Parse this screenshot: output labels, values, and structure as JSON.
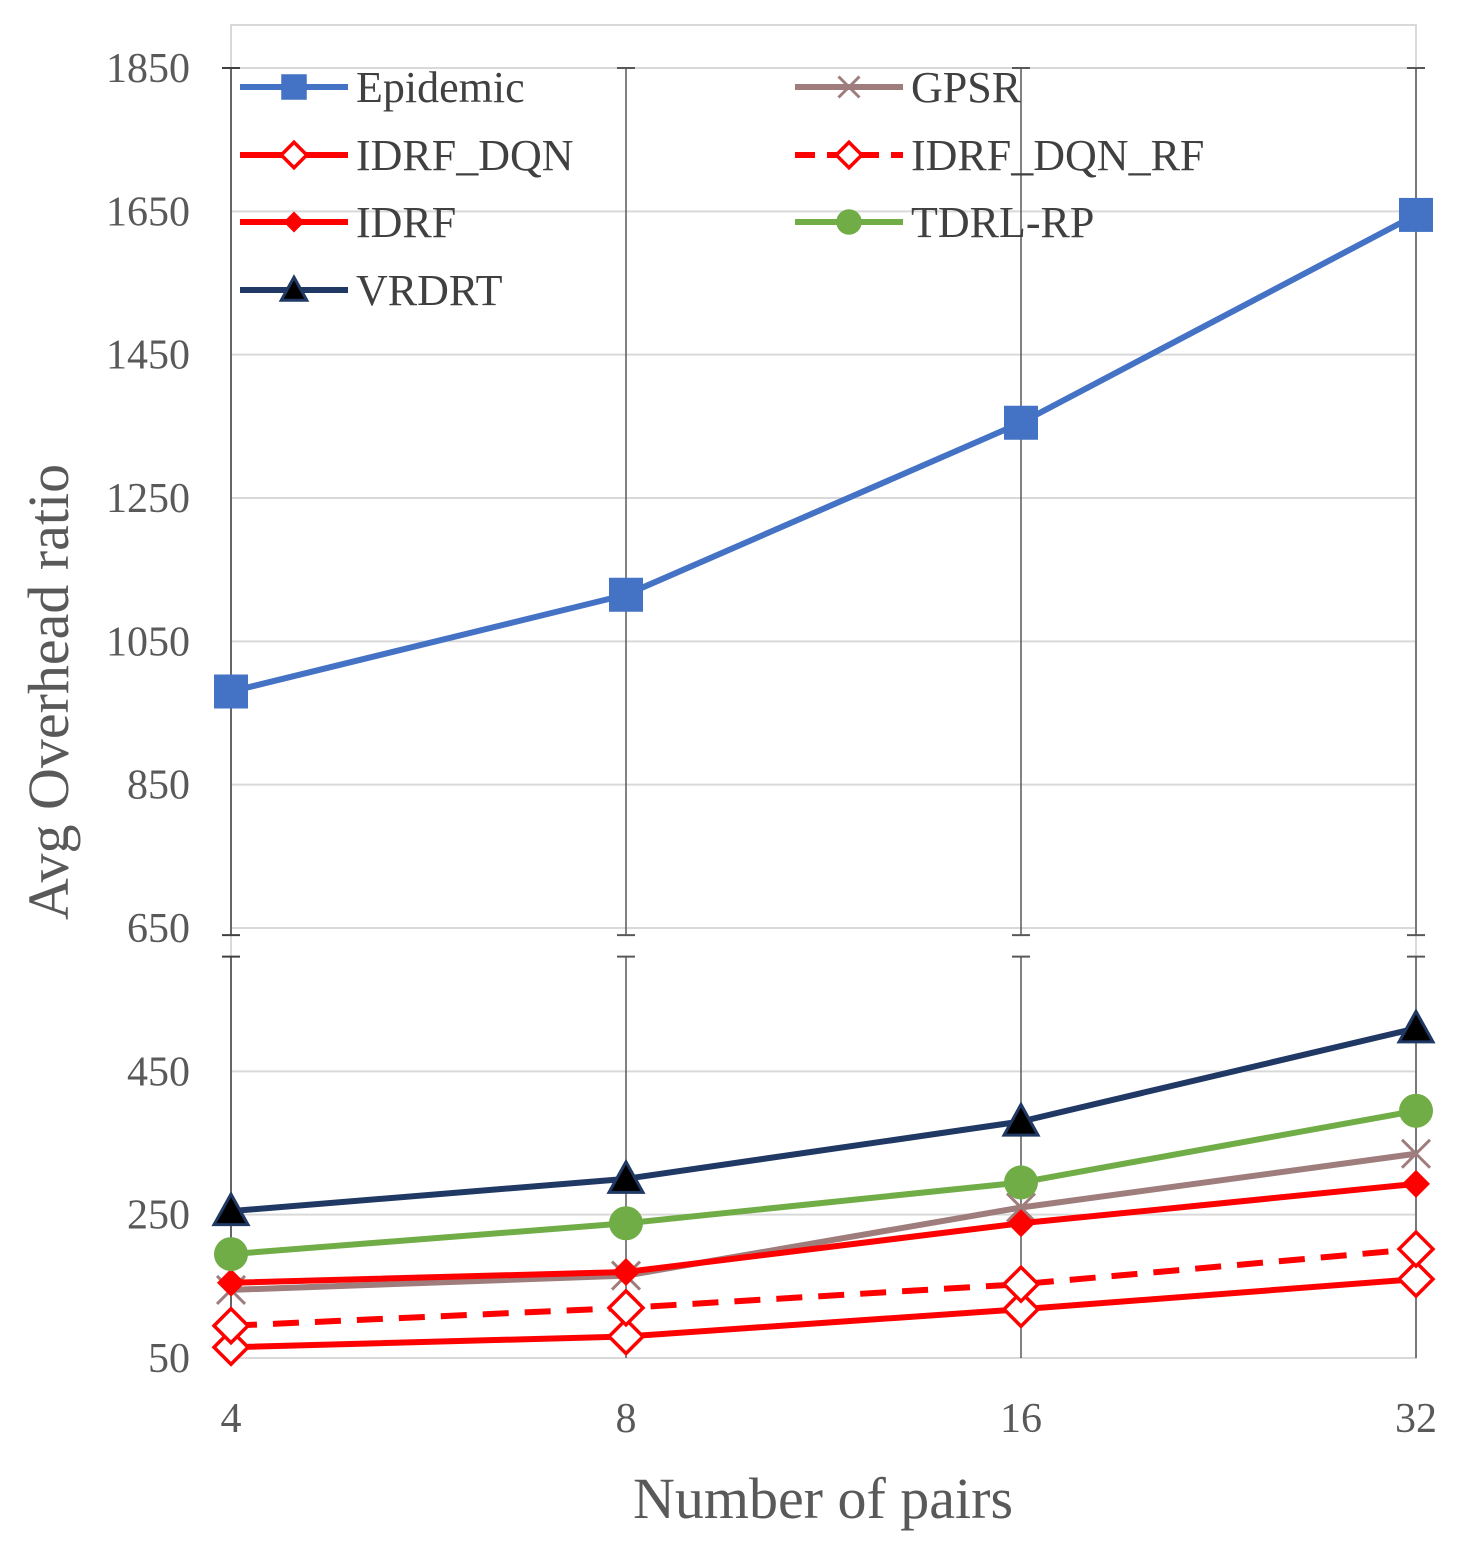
{
  "chart_data": {
    "type": "line",
    "title": "",
    "xlabel": "Number of pairs",
    "ylabel": "Avg Overhead ratio",
    "categories": [
      "4",
      "8",
      "16",
      "32"
    ],
    "yticks": [
      "50",
      "250",
      "450",
      "650",
      "850",
      "1050",
      "1250",
      "1450",
      "1650",
      "1850"
    ],
    "ylim": [
      50,
      1850
    ],
    "grid": true,
    "legend_position": "top",
    "series": [
      {
        "name": "Epidemic",
        "values": [
          980,
          1115,
          1355,
          1645
        ],
        "color": "#4472C4",
        "marker": "square",
        "dashed": false
      },
      {
        "name": "GPSR",
        "values": [
          145,
          165,
          260,
          335
        ],
        "color": "#A07D7D",
        "marker": "x",
        "dashed": false
      },
      {
        "name": "IDRF_DQN",
        "values": [
          65,
          80,
          118,
          160
        ],
        "color": "#FF0000",
        "marker": "diamond-open",
        "dashed": false
      },
      {
        "name": "IDRF_DQN_RF",
        "values": [
          95,
          120,
          153,
          202
        ],
        "color": "#FF0000",
        "marker": "diamond-open",
        "dashed": true
      },
      {
        "name": "IDRF",
        "values": [
          155,
          170,
          238,
          293
        ],
        "color": "#FF0000",
        "marker": "diamond",
        "dashed": false
      },
      {
        "name": "TDRL-RP",
        "values": [
          195,
          238,
          295,
          395
        ],
        "color": "#70AD47",
        "marker": "circle",
        "dashed": false
      },
      {
        "name": "VRDRT",
        "values": [
          255,
          300,
          380,
          510
        ],
        "color": "#203864",
        "marker": "triangle",
        "dashed": false
      }
    ]
  }
}
